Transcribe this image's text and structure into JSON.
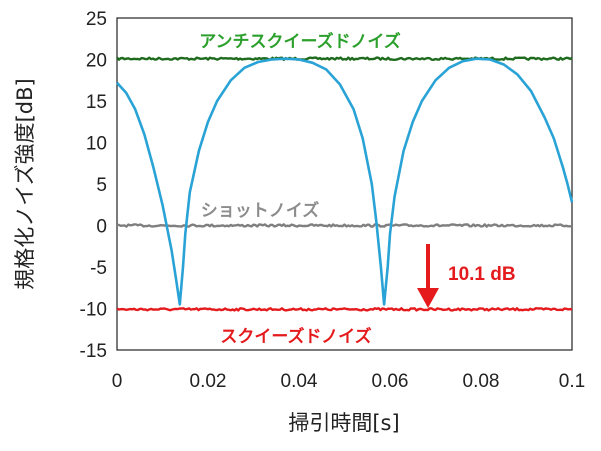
{
  "chart_data": {
    "type": "line",
    "xlabel": "掃引時間[s]",
    "ylabel": "規格化ノイズ強度[dB]",
    "xlim": [
      0,
      0.1
    ],
    "ylim": [
      -15,
      25
    ],
    "x_ticks": [
      "0",
      "0.02",
      "0.04",
      "0.06",
      "0.08",
      "0.1"
    ],
    "y_ticks": [
      "25",
      "20",
      "15",
      "10",
      "5",
      "0",
      "-5",
      "-10",
      "-15"
    ],
    "grid": false,
    "series": [
      {
        "name": "アンチスクイーズドノイズ",
        "color": "#1e6b1e",
        "x": [
          0,
          0.1
        ],
        "y": [
          20.1,
          20.1
        ]
      },
      {
        "name": "ショットノイズ",
        "color": "#7f7f7f",
        "x": [
          0,
          0.1
        ],
        "y": [
          0.0,
          0.0
        ]
      },
      {
        "name": "スクイーズドノイズ",
        "color": "#e41a1c",
        "x": [
          0,
          0.1
        ],
        "y": [
          -10.1,
          -10.1
        ]
      },
      {
        "name": "",
        "color": "#29a3d6",
        "x": [
          0,
          0.002,
          0.004,
          0.006,
          0.008,
          0.01,
          0.012,
          0.013,
          0.0138,
          0.0145,
          0.015,
          0.016,
          0.018,
          0.02,
          0.022,
          0.025,
          0.028,
          0.031,
          0.034,
          0.037,
          0.04,
          0.043,
          0.046,
          0.049,
          0.052,
          0.054,
          0.056,
          0.057,
          0.058,
          0.0587,
          0.0595,
          0.06,
          0.061,
          0.063,
          0.065,
          0.067,
          0.07,
          0.073,
          0.076,
          0.079,
          0.082,
          0.085,
          0.088,
          0.091,
          0.094,
          0.096,
          0.098,
          0.099,
          0.1
        ],
        "y": [
          17.2,
          16.0,
          14.0,
          11.0,
          7.0,
          2.5,
          -3.0,
          -6.5,
          -9.5,
          -5.0,
          -1.0,
          4.0,
          9.0,
          12.5,
          15.0,
          17.5,
          19.0,
          19.7,
          20.0,
          20.1,
          20.0,
          19.6,
          18.8,
          17.0,
          14.0,
          10.5,
          5.0,
          0.5,
          -5.0,
          -9.5,
          -5.0,
          -1.0,
          3.5,
          9.0,
          12.5,
          15.0,
          17.5,
          19.0,
          19.8,
          20.1,
          20.0,
          19.4,
          18.2,
          16.2,
          13.0,
          10.5,
          7.0,
          5.0,
          2.8
        ]
      }
    ],
    "annotations": [
      {
        "text": "アンチスクイーズドノイズ",
        "color": "#2ca02c"
      },
      {
        "text": "ショットノイズ",
        "color": "#8c8c8c"
      },
      {
        "text": "スクイーズドノイズ",
        "color": "#e41a1c"
      },
      {
        "text": "10.1 dB",
        "color": "#e41a1c"
      }
    ]
  }
}
